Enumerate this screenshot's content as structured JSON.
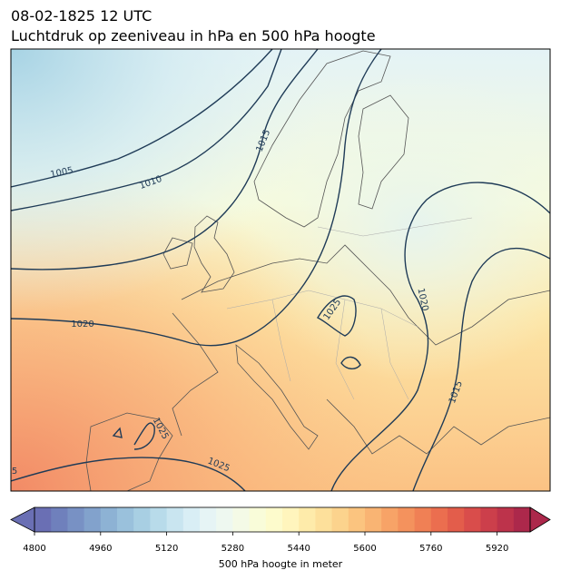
{
  "title": "08-02-1825 12 UTC",
  "subtitle": "Luchtdruk op zeeniveau in hPa en 500 hPa hoogte",
  "contour_labels": [
    "1005",
    "1010",
    "1015",
    "1020",
    "1025",
    "1020",
    "1015",
    "1025",
    "1025",
    "5"
  ],
  "colorbar": {
    "label": "500 hPa hoogte in meter",
    "lim": [
      4800,
      6000
    ],
    "ticks": [
      4800,
      4960,
      5120,
      5280,
      5440,
      5600,
      5760,
      5920
    ],
    "colors": [
      "#6a6fb4",
      "#6f80bc",
      "#7891c4",
      "#82a2cc",
      "#8db2d4",
      "#9ac1dc",
      "#a8cfe3",
      "#b8dbea",
      "#c9e5f0",
      "#d9eef5",
      "#e6f4f5",
      "#eef8f0",
      "#f4fae6",
      "#f9fcd9",
      "#fdfbcc",
      "#fff5bd",
      "#feebaa",
      "#fde09b",
      "#fcd38d",
      "#fbc47f",
      "#f9b473",
      "#f7a367",
      "#f4925d",
      "#f08055",
      "#eb6e4f",
      "#e35d4b",
      "#d94d4b",
      "#cc3f4b",
      "#bd334b",
      "#ac284b"
    ]
  }
}
